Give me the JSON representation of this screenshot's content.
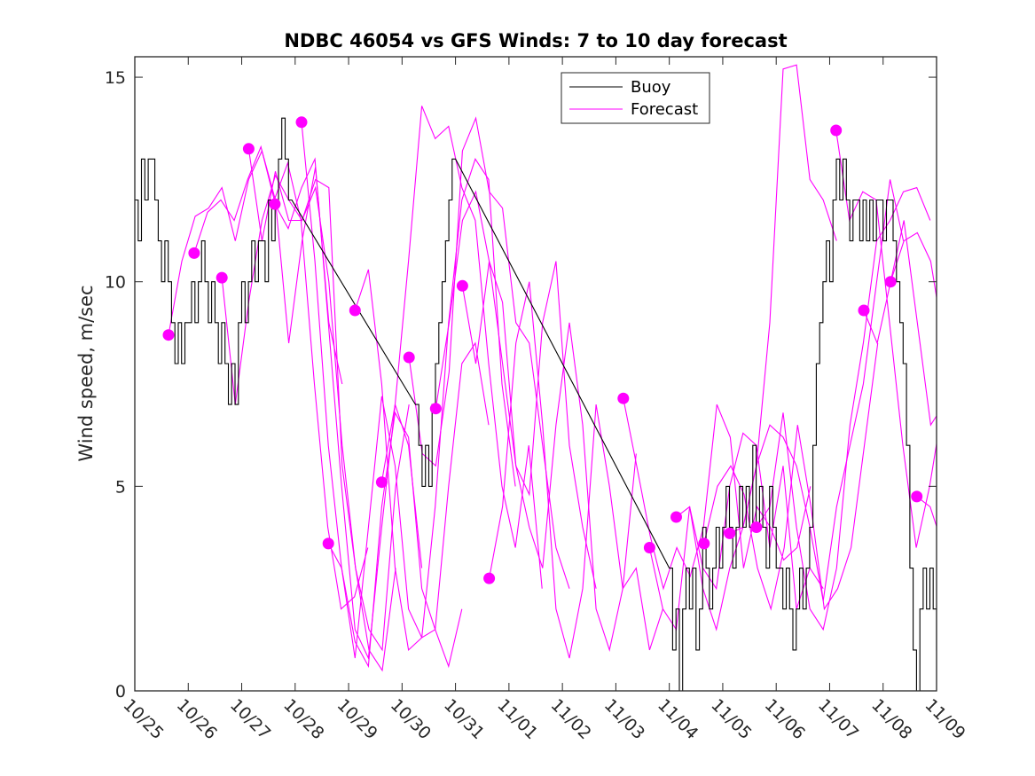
{
  "chart_data": {
    "type": "line",
    "title": "NDBC 46054 vs GFS Winds: 7 to 10 day forecast",
    "xlabel": "",
    "ylabel": "Wind speed, m/sec",
    "x_unit": "days since 10/25",
    "xlim": [
      0,
      15
    ],
    "ylim": [
      0,
      15.5
    ],
    "x_ticks": [
      0,
      1,
      2,
      3,
      4,
      5,
      6,
      7,
      8,
      9,
      10,
      11,
      12,
      13,
      14,
      15
    ],
    "x_tick_labels": [
      "10/25",
      "10/26",
      "10/27",
      "10/28",
      "10/29",
      "10/30",
      "10/31",
      "11/01",
      "11/02",
      "11/03",
      "11/04",
      "11/05",
      "11/06",
      "11/07",
      "11/08",
      "11/09"
    ],
    "y_ticks": [
      0,
      5,
      10,
      15
    ],
    "y_tick_labels": [
      "0",
      "5",
      "10",
      "15"
    ],
    "grid": false,
    "legend": {
      "placement": "top-center",
      "entries": [
        {
          "label": "Buoy",
          "color": "#000000"
        },
        {
          "label": "Forecast",
          "color": "#ff00ff"
        }
      ]
    },
    "colors": {
      "buoy": "#000000",
      "forecast": "#ff00ff"
    },
    "buoy": {
      "name": "Buoy",
      "segments": [
        {
          "start": 0,
          "step": 0.0625,
          "values": [
            12,
            11,
            13,
            12,
            13,
            13,
            12,
            11,
            10,
            11,
            10,
            9,
            8,
            9,
            8,
            9,
            9,
            10,
            9,
            10,
            11,
            10,
            9,
            10,
            9,
            8,
            9,
            8,
            7,
            8,
            7,
            9,
            10,
            9,
            10,
            11,
            10,
            11,
            11,
            10,
            12,
            11,
            12,
            13,
            14,
            13,
            12
          ]
        },
        {
          "start": 5.25,
          "step": 0.0625,
          "values": [
            7,
            6,
            5,
            6,
            5,
            7,
            8,
            9,
            10,
            11,
            12,
            13
          ]
        },
        {
          "start": 10.0,
          "step": 0.0625,
          "values": [
            3,
            1,
            2,
            0,
            2,
            3,
            2,
            3,
            1,
            2,
            4,
            3,
            2,
            3,
            4,
            3,
            4,
            5,
            4,
            3,
            4,
            5,
            4,
            5,
            4,
            6,
            4,
            5,
            4,
            3,
            5,
            4,
            3,
            3,
            2,
            3,
            2,
            1,
            2,
            3,
            2,
            3,
            4,
            6,
            8,
            9,
            10,
            11,
            10,
            12,
            13,
            12,
            13,
            12,
            11,
            12,
            12,
            11,
            12,
            11,
            12,
            11,
            12,
            12,
            11,
            12,
            12,
            11,
            10,
            9,
            8,
            6,
            3,
            1,
            0,
            2,
            3,
            2,
            3,
            2,
            1
          ]
        }
      ]
    },
    "forecast": {
      "name": "Forecast",
      "step": 0.25,
      "runs": [
        {
          "start": 0.63,
          "values": [
            8.7,
            10.5,
            11.6,
            11.8,
            12.3,
            11.0,
            12.5,
            13.2,
            12.0,
            8.5,
            11.0,
            12.8,
            9.0,
            7.5
          ]
        },
        {
          "start": 1.11,
          "values": [
            10.7,
            11.7,
            12.0,
            11.5,
            12.5,
            13.3,
            12.0,
            12.9,
            11.5,
            7.5,
            4.0,
            2.0,
            2.3,
            3.5
          ]
        },
        {
          "start": 1.63,
          "values": [
            10.1,
            7.0,
            9.5,
            11.5,
            12.6,
            12.0,
            11.5,
            12.5,
            12.3,
            5.5,
            3.0,
            1.0,
            0.5,
            3.0
          ]
        },
        {
          "start": 2.13,
          "values": [
            13.25,
            11.0,
            12.7,
            11.5,
            11.5,
            12.3,
            10.0,
            6.0,
            3.0,
            1.5,
            1.0,
            5.0,
            7.0
          ]
        },
        {
          "start": 2.62,
          "values": [
            11.9,
            11.3,
            12.3,
            13.0,
            9.0,
            5.0,
            1.5,
            0.8,
            4.0,
            7.0,
            6.0,
            3.0
          ]
        },
        {
          "start": 3.12,
          "values": [
            13.9,
            10.5,
            6.0,
            3.0,
            1.2,
            0.6,
            4.5,
            6.8,
            6.2,
            2.5,
            1.5,
            0.6,
            2.0
          ]
        },
        {
          "start": 3.62,
          "values": [
            3.6,
            3.0,
            0.8,
            4.0,
            7.2,
            5.5,
            2.0,
            1.3,
            1.5,
            5.0,
            8.0,
            8.5,
            6.5
          ]
        },
        {
          "start": 4.12,
          "values": [
            9.3,
            10.3,
            7.5,
            3.0,
            1.0,
            1.3,
            4.5,
            9.0,
            12.0,
            13.0,
            12.5,
            7.5,
            5.0
          ]
        },
        {
          "start": 4.62,
          "values": [
            5.1,
            7.0,
            10.5,
            14.3,
            13.5,
            13.8,
            12.3,
            11.5,
            8.0,
            5.0,
            3.5,
            6.0,
            2.5
          ]
        },
        {
          "start": 5.13,
          "values": [
            8.15,
            5.8,
            5.5,
            7.8,
            13.2,
            14.0,
            12.2,
            11.8,
            9.0,
            8.5,
            6.0,
            3.5,
            2.5
          ]
        },
        {
          "start": 5.63,
          "values": [
            6.9,
            9.0,
            11.5,
            12.2,
            10.5,
            8.0,
            5.5,
            4.8,
            9.0,
            10.5,
            6.0,
            4.0,
            2.5
          ]
        },
        {
          "start": 6.13,
          "values": [
            9.9,
            8.0,
            10.5,
            9.5,
            5.5,
            4.0,
            3.0,
            6.5,
            9.0,
            6.5,
            2.0,
            1.0,
            2.5,
            5.8
          ]
        },
        {
          "start": 6.63,
          "values": [
            2.75,
            4.5,
            8.5,
            10.0,
            6.5,
            2.0,
            0.8,
            2.5,
            7.0,
            5.0,
            2.5,
            3.0,
            1.0,
            2.0
          ]
        },
        {
          "start": 9.14,
          "values": [
            7.15,
            5.5,
            3.8,
            2.5,
            3.5,
            2.8,
            4.0,
            7.0,
            6.2,
            3.0,
            4.5,
            4.0,
            3.2,
            3.5,
            5.0
          ]
        },
        {
          "start": 9.63,
          "values": [
            3.5,
            2.0,
            1.5,
            4.5,
            3.0,
            2.5,
            5.0,
            6.3,
            6.0,
            3.5,
            5.5,
            2.0,
            3.0,
            2.5
          ]
        },
        {
          "start": 10.13,
          "values": [
            4.25,
            4.5,
            2.5,
            1.5,
            3.0,
            4.0,
            5.5,
            9.0,
            15.2,
            15.3,
            12.5,
            12.0,
            11.0
          ]
        },
        {
          "start": 10.65,
          "values": [
            3.6,
            5.0,
            5.5,
            4.8,
            3.0,
            2.0,
            3.5,
            6.5,
            4.5,
            2.0,
            2.5,
            3.5,
            6.0,
            8.5
          ]
        },
        {
          "start": 11.13,
          "values": [
            3.85,
            4.0,
            5.5,
            6.5,
            6.2,
            5.5,
            4.0,
            2.2,
            4.5,
            6.0,
            7.5,
            10.0,
            12.5,
            11.0
          ]
        },
        {
          "start": 11.63,
          "values": [
            4.0,
            4.5,
            6.8,
            4.0,
            2.0,
            1.5,
            3.0,
            6.5,
            8.5,
            11.0,
            11.5,
            12.2,
            12.3,
            11.5
          ]
        },
        {
          "start": 13.12,
          "values": [
            13.7,
            11.5,
            12.2,
            12.0,
            9.0,
            6.0,
            3.5,
            5.0,
            7.0,
            9.5,
            6.0,
            3.5,
            2.5
          ]
        },
        {
          "start": 13.64,
          "values": [
            9.3,
            8.5,
            10.0,
            11.5,
            9.0,
            6.5,
            7.0,
            5.0,
            3.0,
            1.0,
            2.0,
            4.5,
            4.0
          ]
        },
        {
          "start": 14.14,
          "values": [
            10.0,
            11.0,
            11.2,
            10.5,
            8.5,
            10.5,
            11.8
          ]
        },
        {
          "start": 14.63,
          "values": [
            4.75,
            4.5,
            3.5,
            4.0,
            6.0,
            7.0
          ]
        }
      ]
    }
  }
}
